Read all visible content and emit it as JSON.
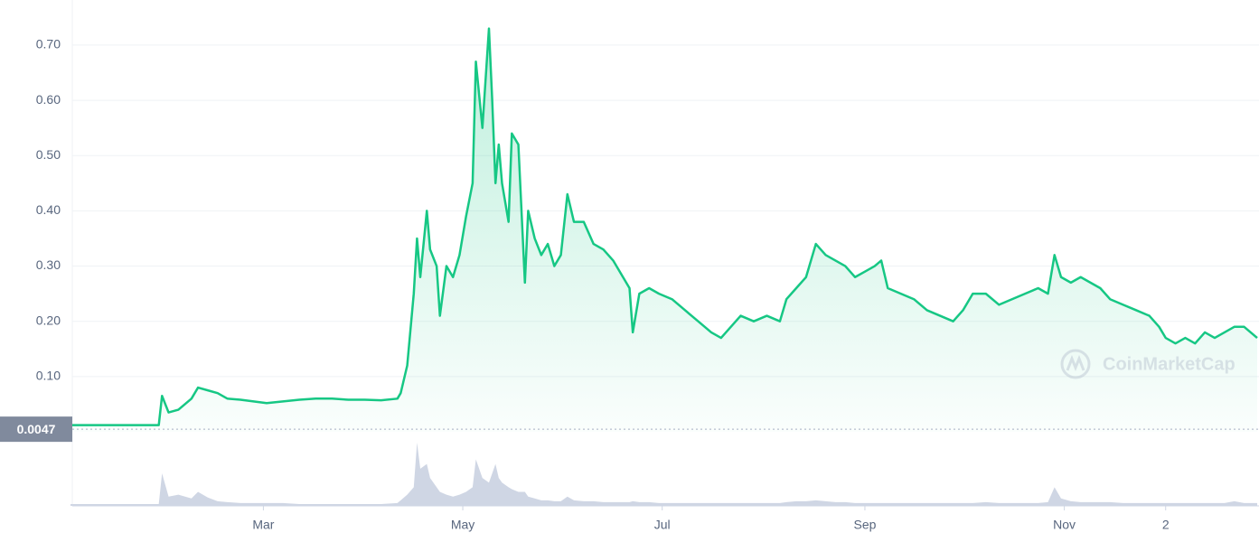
{
  "chart_data": {
    "type": "line",
    "watermark": "CoinMarketCap",
    "color": "#16c784",
    "grid": true,
    "xlim": [
      0,
      363
    ],
    "xticks": [
      {
        "value": 59,
        "label": "Mar"
      },
      {
        "value": 120,
        "label": "May"
      },
      {
        "value": 181,
        "label": "Jul"
      },
      {
        "value": 243,
        "label": "Sep"
      },
      {
        "value": 304,
        "label": "Nov"
      },
      {
        "value": 335,
        "label": "2"
      }
    ],
    "ylim": [
      0,
      0.78
    ],
    "yticks": [
      {
        "value": 0.1,
        "label": "0.10"
      },
      {
        "value": 0.2,
        "label": "0.20"
      },
      {
        "value": 0.3,
        "label": "0.30"
      },
      {
        "value": 0.4,
        "label": "0.40"
      },
      {
        "value": 0.5,
        "label": "0.50"
      },
      {
        "value": 0.6,
        "label": "0.60"
      },
      {
        "value": 0.7,
        "label": "0.70"
      }
    ],
    "reference": 0.0047,
    "x": [
      0,
      10,
      20,
      27,
      28,
      30,
      33,
      37,
      39,
      42,
      45,
      48,
      52,
      56,
      60,
      65,
      70,
      75,
      80,
      85,
      90,
      95,
      100,
      101,
      103,
      105,
      106,
      107,
      109,
      110,
      112,
      113,
      115,
      117,
      119,
      121,
      123,
      124,
      126,
      128,
      129,
      130,
      131,
      132,
      134,
      135,
      137,
      139,
      140,
      142,
      144,
      146,
      148,
      150,
      152,
      154,
      157,
      160,
      163,
      166,
      169,
      171,
      172,
      174,
      177,
      180,
      184,
      188,
      192,
      196,
      199,
      202,
      205,
      209,
      213,
      217,
      219,
      222,
      225,
      228,
      231,
      234,
      237,
      240,
      243,
      246,
      248,
      250,
      254,
      258,
      262,
      266,
      270,
      273,
      276,
      280,
      284,
      288,
      292,
      296,
      299,
      301,
      303,
      306,
      309,
      312,
      315,
      318,
      322,
      326,
      330,
      333,
      335,
      338,
      341,
      344,
      347,
      350,
      353,
      356,
      359,
      363
    ],
    "values": [
      0.012,
      0.012,
      0.012,
      0.012,
      0.065,
      0.035,
      0.04,
      0.06,
      0.08,
      0.075,
      0.07,
      0.06,
      0.058,
      0.055,
      0.052,
      0.055,
      0.058,
      0.06,
      0.06,
      0.058,
      0.058,
      0.057,
      0.06,
      0.07,
      0.12,
      0.25,
      0.35,
      0.28,
      0.4,
      0.33,
      0.3,
      0.21,
      0.3,
      0.28,
      0.32,
      0.39,
      0.45,
      0.67,
      0.55,
      0.73,
      0.6,
      0.45,
      0.52,
      0.45,
      0.38,
      0.54,
      0.52,
      0.27,
      0.4,
      0.35,
      0.32,
      0.34,
      0.3,
      0.32,
      0.43,
      0.38,
      0.38,
      0.34,
      0.33,
      0.31,
      0.28,
      0.26,
      0.18,
      0.25,
      0.26,
      0.25,
      0.24,
      0.22,
      0.2,
      0.18,
      0.17,
      0.19,
      0.21,
      0.2,
      0.21,
      0.2,
      0.24,
      0.26,
      0.28,
      0.34,
      0.32,
      0.31,
      0.3,
      0.28,
      0.29,
      0.3,
      0.31,
      0.26,
      0.25,
      0.24,
      0.22,
      0.21,
      0.2,
      0.22,
      0.25,
      0.25,
      0.23,
      0.24,
      0.25,
      0.26,
      0.25,
      0.32,
      0.28,
      0.27,
      0.28,
      0.27,
      0.26,
      0.24,
      0.23,
      0.22,
      0.21,
      0.19,
      0.17,
      0.16,
      0.17,
      0.16,
      0.18,
      0.17,
      0.18,
      0.19,
      0.19,
      0.17
    ],
    "volume": {
      "color": "#cfd6e4",
      "values": [
        2,
        2,
        2,
        2,
        35,
        10,
        12,
        8,
        15,
        9,
        5,
        4,
        3,
        3,
        3,
        3,
        2,
        2,
        2,
        2,
        2,
        2,
        3,
        6,
        12,
        20,
        68,
        40,
        45,
        30,
        20,
        15,
        12,
        10,
        12,
        15,
        20,
        50,
        30,
        25,
        35,
        45,
        30,
        25,
        20,
        18,
        15,
        15,
        10,
        8,
        6,
        6,
        5,
        5,
        10,
        6,
        5,
        5,
        4,
        4,
        4,
        4,
        5,
        4,
        4,
        3,
        3,
        3,
        3,
        3,
        3,
        3,
        3,
        3,
        3,
        3,
        4,
        5,
        5,
        6,
        5,
        4,
        4,
        3,
        3,
        3,
        3,
        3,
        3,
        3,
        3,
        3,
        3,
        3,
        3,
        4,
        3,
        3,
        3,
        3,
        4,
        20,
        8,
        5,
        4,
        4,
        4,
        4,
        3,
        3,
        3,
        3,
        3,
        3,
        3,
        3,
        3,
        3,
        3,
        5,
        3,
        3
      ]
    }
  }
}
